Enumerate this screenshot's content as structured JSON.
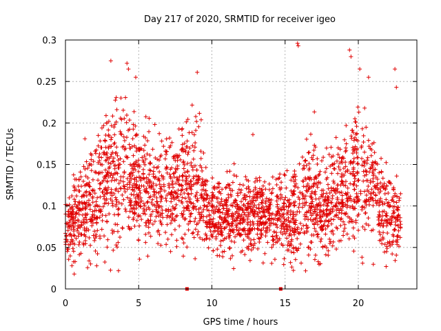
{
  "chart_data": {
    "type": "scatter",
    "title": "Day 217 of 2020, SRMTID for receiver igeo",
    "xlabel": "GPS time / hours",
    "ylabel": "SRMTID / TECUs",
    "xlim": [
      0,
      24
    ],
    "ylim": [
      0,
      0.3
    ],
    "x_ticks": [
      0,
      5,
      10,
      15,
      20
    ],
    "x_tick_labels": [
      "0",
      "5",
      "10",
      "15",
      "20"
    ],
    "y_ticks": [
      0,
      0.05,
      0.1,
      0.15,
      0.2,
      0.25,
      0.3
    ],
    "y_tick_labels": [
      "0",
      "0.05",
      "0.1",
      "0.15",
      "0.2",
      "0.25",
      "0.3"
    ],
    "grid": true,
    "marker": "+",
    "color": "#e00000",
    "x_range": [
      0,
      22.9
    ],
    "gap_markers_x": [
      8.3,
      14.7
    ],
    "envelope": {
      "hours": [
        0,
        0.5,
        1,
        1.5,
        2,
        2.5,
        3,
        3.5,
        4,
        4.5,
        5,
        5.5,
        6,
        6.5,
        7,
        7.5,
        8,
        8.5,
        9,
        9.5,
        10,
        10.5,
        11,
        11.5,
        12,
        12.5,
        13,
        13.5,
        14,
        14.5,
        15,
        15.5,
        16,
        16.5,
        17,
        17.5,
        18,
        18.5,
        19,
        19.5,
        20,
        20.5,
        21,
        21.5,
        22,
        22.5,
        23
      ],
      "typical": [
        0.075,
        0.08,
        0.09,
        0.1,
        0.11,
        0.12,
        0.13,
        0.135,
        0.14,
        0.135,
        0.13,
        0.125,
        0.12,
        0.12,
        0.12,
        0.12,
        0.125,
        0.13,
        0.13,
        0.1,
        0.095,
        0.09,
        0.09,
        0.09,
        0.09,
        0.09,
        0.095,
        0.09,
        0.085,
        0.085,
        0.085,
        0.09,
        0.1,
        0.105,
        0.11,
        0.1,
        0.1,
        0.11,
        0.12,
        0.13,
        0.14,
        0.13,
        0.12,
        0.1,
        0.09,
        0.085,
        0.075
      ],
      "spread": [
        0.02,
        0.03,
        0.035,
        0.04,
        0.045,
        0.05,
        0.055,
        0.055,
        0.055,
        0.05,
        0.05,
        0.045,
        0.045,
        0.045,
        0.045,
        0.045,
        0.045,
        0.05,
        0.05,
        0.035,
        0.03,
        0.03,
        0.03,
        0.03,
        0.03,
        0.03,
        0.03,
        0.03,
        0.03,
        0.03,
        0.035,
        0.04,
        0.045,
        0.045,
        0.045,
        0.04,
        0.04,
        0.045,
        0.05,
        0.055,
        0.06,
        0.055,
        0.05,
        0.04,
        0.035,
        0.035,
        0.02
      ]
    },
    "peaks": [
      {
        "x": 3.1,
        "y": 0.275
      },
      {
        "x": 4.2,
        "y": 0.272
      },
      {
        "x": 4.3,
        "y": 0.265
      },
      {
        "x": 4.8,
        "y": 0.255
      },
      {
        "x": 9.0,
        "y": 0.261
      },
      {
        "x": 15.85,
        "y": 0.296
      },
      {
        "x": 15.9,
        "y": 0.293
      },
      {
        "x": 19.4,
        "y": 0.288
      },
      {
        "x": 19.5,
        "y": 0.28
      },
      {
        "x": 20.1,
        "y": 0.265
      },
      {
        "x": 20.7,
        "y": 0.255
      },
      {
        "x": 22.5,
        "y": 0.265
      },
      {
        "x": 22.6,
        "y": 0.243
      },
      {
        "x": 12.8,
        "y": 0.186
      },
      {
        "x": 0.6,
        "y": 0.018
      },
      {
        "x": 21.9,
        "y": 0.027
      }
    ]
  }
}
